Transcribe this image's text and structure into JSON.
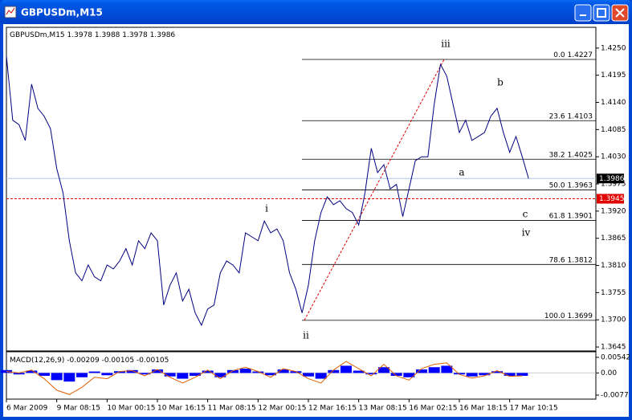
{
  "window_title": "GBPUSDm,M15",
  "chart_data": {
    "type": "line",
    "symbol": "GBPUSDm,M15",
    "ohlc": [
      1.3978,
      1.3988,
      1.3978,
      1.3986
    ],
    "color": "#000080",
    "values": [
      1.4234,
      1.4104,
      1.4095,
      1.4063,
      1.4177,
      1.4128,
      1.4112,
      1.4087,
      1.4006,
      1.3957,
      1.386,
      1.3795,
      1.3779,
      1.3811,
      1.3787,
      1.3779,
      1.3811,
      1.3803,
      1.3819,
      1.3844,
      1.3811,
      1.386,
      1.3844,
      1.3876,
      1.386,
      1.373,
      1.377,
      1.3795,
      1.3738,
      1.3762,
      1.3714,
      1.3689,
      1.3722,
      1.373,
      1.3795,
      1.3819,
      1.3811,
      1.3795,
      1.3876,
      1.3868,
      1.386,
      1.39,
      1.3876,
      1.3884,
      1.386,
      1.3795,
      1.3762,
      1.3714,
      1.377,
      1.386,
      1.3917,
      1.3949,
      1.3933,
      1.3941,
      1.3925,
      1.3917,
      1.3892,
      1.3957,
      1.4047,
      1.3998,
      1.4014,
      1.3965,
      1.3974,
      1.3909,
      1.3965,
      1.4022,
      1.403,
      1.403,
      1.4136,
      1.4217,
      1.4193,
      1.4136,
      1.4079,
      1.4104,
      1.4063,
      1.4071,
      1.4079,
      1.4112,
      1.4128,
      1.4079,
      1.4039,
      1.4071,
      1.403,
      1.3986
    ],
    "xlim": [
      0,
      93.7
    ],
    "xticks": [
      {
        "value": 0,
        "label": "6 Mar 2009"
      },
      {
        "value": 8,
        "label": "9 Mar 08:15"
      },
      {
        "value": 16,
        "label": "10 Mar 00:15"
      },
      {
        "value": 24,
        "label": "10 Mar 16:15"
      },
      {
        "value": 32,
        "label": "11 Mar 08:15"
      },
      {
        "value": 40,
        "label": "12 Mar 00:15"
      },
      {
        "value": 48,
        "label": "12 Mar 16:15"
      },
      {
        "value": 56,
        "label": "13 Mar 08:15"
      },
      {
        "value": 64,
        "label": "16 Mar 02:15"
      },
      {
        "value": 72,
        "label": "16 Mar 18:15"
      },
      {
        "value": 80,
        "label": "17 Mar 10:15"
      }
    ],
    "ylim": [
      1.3637,
      1.4292
    ],
    "yticks": [
      {
        "value": 1.425,
        "label": "1.4250"
      },
      1.4195,
      {
        "value": 1.414,
        "label": "1.4140"
      },
      1.4085,
      {
        "value": 1.403,
        "label": "1.4030"
      },
      1.3975,
      {
        "value": 1.392,
        "label": "1.3920"
      },
      1.3865,
      {
        "value": 1.381,
        "label": "1.3810"
      },
      1.3755,
      {
        "value": 1.37,
        "label": "1.3700"
      },
      1.3645
    ],
    "bid_line": 1.3986,
    "alert_line": 1.3945,
    "fibonacci": [
      {
        "level": "0.0",
        "price": 1.4227
      },
      {
        "level": "23.6",
        "price": 1.4103
      },
      {
        "level": "38.2",
        "price": 1.4025
      },
      {
        "level": "50.0",
        "price": 1.3963
      },
      {
        "level": "61.8",
        "price": 1.3901
      },
      {
        "level": "78.6",
        "price": 1.3812
      },
      {
        "level": "100.0",
        "price": 1.3699
      }
    ],
    "annotations": [
      "iii",
      "b",
      "a",
      "c",
      "iv",
      "i",
      "ii"
    ],
    "macd": {
      "name": "MACD(12,26,9)",
      "readout": [
        -0.00209,
        -0.00105,
        -0.00105
      ],
      "histogram_color": "#0000ff",
      "signal_color": "#e06000",
      "histogram": [
        0.001,
        -0.0005,
        0.0008,
        -0.001,
        -0.0025,
        -0.003,
        -0.0015,
        0.0005,
        -0.0008,
        0.0006,
        0.001,
        -0.0005,
        0.0012,
        -0.0012,
        -0.002,
        -0.001,
        0.0008,
        -0.0015,
        0.001,
        0.0015,
        0.0005,
        -0.0008,
        0.0012,
        0.0006,
        -0.0012,
        -0.002,
        0.001,
        0.0025,
        0.0008,
        -0.0005,
        0.002,
        -0.001,
        -0.0015,
        0.0012,
        0.002,
        0.0025,
        -0.0005,
        -0.0012,
        -0.0008,
        0.0006,
        -0.001,
        -0.001
      ],
      "signal": [
        0.0005,
        0.0,
        0.001,
        -0.002,
        -0.006,
        -0.0075,
        -0.005,
        -0.0015,
        -0.002,
        0.0005,
        0.0008,
        -0.001,
        0.0012,
        -0.0015,
        -0.0035,
        -0.0015,
        0.001,
        -0.002,
        0.0008,
        0.002,
        0.0005,
        -0.0015,
        0.0015,
        0.0005,
        -0.002,
        -0.0035,
        0.001,
        0.004,
        0.0015,
        -0.001,
        0.003,
        -0.001,
        -0.0025,
        0.0015,
        0.003,
        0.0035,
        -0.0005,
        -0.0018,
        -0.001,
        0.0008,
        -0.0012,
        -0.001
      ],
      "ylim": [
        -0.0091,
        0.00737
      ],
      "yticks": [
        0.00542,
        {
          "value": 0,
          "label": "0.00"
        },
        -0.0077
      ]
    }
  }
}
